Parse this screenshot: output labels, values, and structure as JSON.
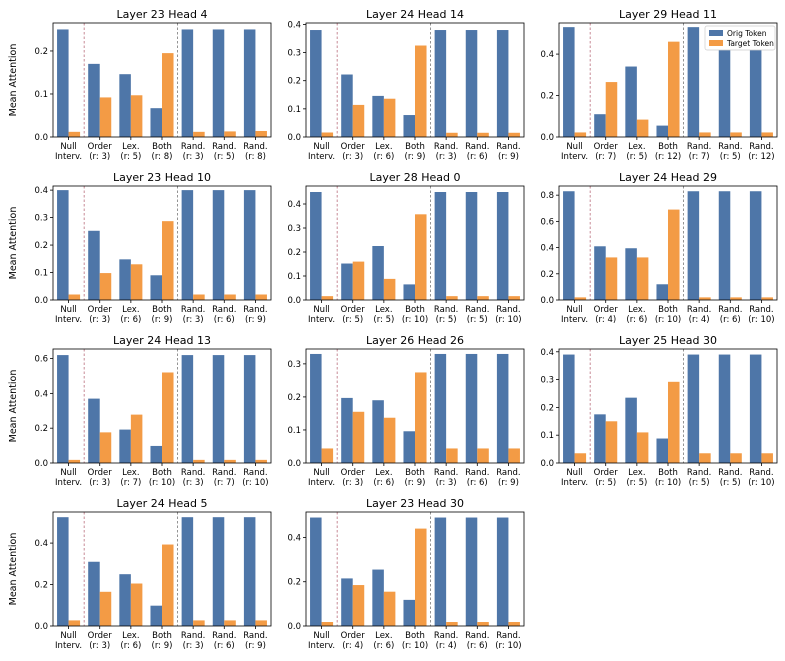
{
  "colors": {
    "orig": "#4e76a8",
    "target": "#f39b45"
  },
  "legend": {
    "orig_label": "Orig Token",
    "target_label": "Target Token"
  },
  "y_axis_label": "Mean Attention",
  "chart_data": [
    {
      "type": "bar",
      "title": "Layer 23 Head 4",
      "ylim": [
        0,
        0.265
      ],
      "yticks": [
        "0.0",
        "0.1",
        "0.2"
      ],
      "ytick_values": [
        0,
        0.1,
        0.2
      ],
      "categories": [
        [
          "Null",
          "Interv."
        ],
        [
          "Order",
          "(r: 3)"
        ],
        [
          "Lex.",
          "(r: 5)"
        ],
        [
          "Both",
          "(r: 8)"
        ],
        [
          "Rand.",
          "(r: 3)"
        ],
        [
          "Rand.",
          "(r: 5)"
        ],
        [
          "Rand.",
          "(r: 8)"
        ]
      ],
      "series": [
        {
          "name": "Orig Token",
          "values": [
            0.25,
            0.17,
            0.146,
            0.067,
            0.25,
            0.25,
            0.25
          ]
        },
        {
          "name": "Target Token",
          "values": [
            0.012,
            0.092,
            0.097,
            0.195,
            0.012,
            0.013,
            0.014
          ]
        }
      ]
    },
    {
      "type": "bar",
      "title": "Layer 24 Head 14",
      "ylim": [
        0,
        0.405
      ],
      "yticks": [
        "0.0",
        "0.1",
        "0.2",
        "0.3",
        "0.4"
      ],
      "ytick_values": [
        0,
        0.1,
        0.2,
        0.3,
        0.4
      ],
      "categories": [
        [
          "Null",
          "Interv."
        ],
        [
          "Order",
          "(r: 3)"
        ],
        [
          "Lex.",
          "(r: 6)"
        ],
        [
          "Both",
          "(r: 9)"
        ],
        [
          "Rand.",
          "(r: 3)"
        ],
        [
          "Rand.",
          "(r: 6)"
        ],
        [
          "Rand.",
          "(r: 9)"
        ]
      ],
      "series": [
        {
          "name": "Orig Token",
          "values": [
            0.38,
            0.222,
            0.146,
            0.078,
            0.38,
            0.38,
            0.38
          ]
        },
        {
          "name": "Target Token",
          "values": [
            0.016,
            0.114,
            0.136,
            0.325,
            0.015,
            0.015,
            0.015
          ]
        }
      ]
    },
    {
      "type": "bar",
      "title": "Layer 29 Head 11",
      "ylim": [
        0,
        0.55
      ],
      "yticks": [
        "0.0",
        "0.2",
        "0.4"
      ],
      "ytick_values": [
        0,
        0.2,
        0.4
      ],
      "categories": [
        [
          "Null",
          "Interv."
        ],
        [
          "Order",
          "(r: 7)"
        ],
        [
          "Lex.",
          "(r: 5)"
        ],
        [
          "Both",
          "(r: 12)"
        ],
        [
          "Rand.",
          "(r: 7)"
        ],
        [
          "Rand.",
          "(r: 5)"
        ],
        [
          "Rand.",
          "(r: 12)"
        ]
      ],
      "series": [
        {
          "name": "Orig Token",
          "values": [
            0.53,
            0.11,
            0.34,
            0.055,
            0.53,
            0.53,
            0.53
          ]
        },
        {
          "name": "Target Token",
          "values": [
            0.022,
            0.265,
            0.084,
            0.46,
            0.022,
            0.022,
            0.022
          ]
        }
      ],
      "legend": true
    },
    {
      "type": "bar",
      "title": "Layer 23 Head 10",
      "ylim": [
        0,
        0.415
      ],
      "yticks": [
        "0.0",
        "0.1",
        "0.2",
        "0.3",
        "0.4"
      ],
      "ytick_values": [
        0,
        0.1,
        0.2,
        0.3,
        0.4
      ],
      "categories": [
        [
          "Null",
          "Interv."
        ],
        [
          "Order",
          "(r: 3)"
        ],
        [
          "Lex.",
          "(r: 6)"
        ],
        [
          "Both",
          "(r: 9)"
        ],
        [
          "Rand.",
          "(r: 3)"
        ],
        [
          "Rand.",
          "(r: 6)"
        ],
        [
          "Rand.",
          "(r: 9)"
        ]
      ],
      "series": [
        {
          "name": "Orig Token",
          "values": [
            0.4,
            0.252,
            0.148,
            0.09,
            0.4,
            0.4,
            0.4
          ]
        },
        {
          "name": "Target Token",
          "values": [
            0.02,
            0.098,
            0.13,
            0.287,
            0.02,
            0.02,
            0.02
          ]
        }
      ]
    },
    {
      "type": "bar",
      "title": "Layer 28 Head 0",
      "ylim": [
        0,
        0.475
      ],
      "yticks": [
        "0.0",
        "0.1",
        "0.2",
        "0.3",
        "0.4"
      ],
      "ytick_values": [
        0,
        0.1,
        0.2,
        0.3,
        0.4
      ],
      "categories": [
        [
          "Null",
          "Interv."
        ],
        [
          "Order",
          "(r: 5)"
        ],
        [
          "Lex.",
          "(r: 5)"
        ],
        [
          "Both",
          "(r: 10)"
        ],
        [
          "Rand.",
          "(r: 5)"
        ],
        [
          "Rand.",
          "(r: 5)"
        ],
        [
          "Rand.",
          "(r: 10)"
        ]
      ],
      "series": [
        {
          "name": "Orig Token",
          "values": [
            0.45,
            0.152,
            0.225,
            0.065,
            0.45,
            0.45,
            0.45
          ]
        },
        {
          "name": "Target Token",
          "values": [
            0.016,
            0.16,
            0.088,
            0.357,
            0.016,
            0.016,
            0.016
          ]
        }
      ]
    },
    {
      "type": "bar",
      "title": "Layer 24 Head 29",
      "ylim": [
        0,
        0.87
      ],
      "yticks": [
        "0.0",
        "0.2",
        "0.4",
        "0.6",
        "0.8"
      ],
      "ytick_values": [
        0,
        0.2,
        0.4,
        0.6,
        0.8
      ],
      "categories": [
        [
          "Null",
          "Interv."
        ],
        [
          "Order",
          "(r: 4)"
        ],
        [
          "Lex.",
          "(r: 6)"
        ],
        [
          "Both",
          "(r: 10)"
        ],
        [
          "Rand.",
          "(r: 4)"
        ],
        [
          "Rand.",
          "(r: 6)"
        ],
        [
          "Rand.",
          "(r: 10)"
        ]
      ],
      "series": [
        {
          "name": "Orig Token",
          "values": [
            0.83,
            0.41,
            0.395,
            0.12,
            0.83,
            0.83,
            0.83
          ]
        },
        {
          "name": "Target Token",
          "values": [
            0.02,
            0.325,
            0.325,
            0.69,
            0.02,
            0.02,
            0.02
          ]
        }
      ]
    },
    {
      "type": "bar",
      "title": "Layer 24 Head 13",
      "ylim": [
        0,
        0.655
      ],
      "yticks": [
        "0.0",
        "0.2",
        "0.4",
        "0.6"
      ],
      "ytick_values": [
        0,
        0.2,
        0.4,
        0.6
      ],
      "categories": [
        [
          "Null",
          "Interv."
        ],
        [
          "Order",
          "(r: 3)"
        ],
        [
          "Lex.",
          "(r: 7)"
        ],
        [
          "Both",
          "(r: 10)"
        ],
        [
          "Rand.",
          "(r: 3)"
        ],
        [
          "Rand.",
          "(r: 7)"
        ],
        [
          "Rand.",
          "(r: 10)"
        ]
      ],
      "series": [
        {
          "name": "Orig Token",
          "values": [
            0.62,
            0.37,
            0.192,
            0.098,
            0.62,
            0.62,
            0.62
          ]
        },
        {
          "name": "Target Token",
          "values": [
            0.018,
            0.176,
            0.278,
            0.52,
            0.018,
            0.018,
            0.018
          ]
        }
      ]
    },
    {
      "type": "bar",
      "title": "Layer 26 Head 26",
      "ylim": [
        0,
        0.345
      ],
      "yticks": [
        "0.0",
        "0.1",
        "0.2",
        "0.3"
      ],
      "ytick_values": [
        0,
        0.1,
        0.2,
        0.3
      ],
      "categories": [
        [
          "Null",
          "Interv."
        ],
        [
          "Order",
          "(r: 3)"
        ],
        [
          "Lex.",
          "(r: 6)"
        ],
        [
          "Both",
          "(r: 9)"
        ],
        [
          "Rand.",
          "(r: 3)"
        ],
        [
          "Rand.",
          "(r: 6)"
        ],
        [
          "Rand.",
          "(r: 9)"
        ]
      ],
      "series": [
        {
          "name": "Orig Token",
          "values": [
            0.33,
            0.197,
            0.19,
            0.096,
            0.33,
            0.33,
            0.33
          ]
        },
        {
          "name": "Target Token",
          "values": [
            0.044,
            0.155,
            0.137,
            0.274,
            0.044,
            0.044,
            0.044
          ]
        }
      ]
    },
    {
      "type": "bar",
      "title": "Layer 25 Head 30",
      "ylim": [
        0,
        0.41
      ],
      "yticks": [
        "0.0",
        "0.1",
        "0.2",
        "0.3",
        "0.4"
      ],
      "ytick_values": [
        0,
        0.1,
        0.2,
        0.3,
        0.4
      ],
      "categories": [
        [
          "Null",
          "Interv."
        ],
        [
          "Order",
          "(r: 5)"
        ],
        [
          "Lex.",
          "(r: 5)"
        ],
        [
          "Both",
          "(r: 10)"
        ],
        [
          "Rand.",
          "(r: 5)"
        ],
        [
          "Rand.",
          "(r: 5)"
        ],
        [
          "Rand.",
          "(r: 10)"
        ]
      ],
      "series": [
        {
          "name": "Orig Token",
          "values": [
            0.39,
            0.175,
            0.235,
            0.088,
            0.39,
            0.39,
            0.39
          ]
        },
        {
          "name": "Target Token",
          "values": [
            0.035,
            0.15,
            0.11,
            0.292,
            0.035,
            0.035,
            0.035
          ]
        }
      ]
    },
    {
      "type": "bar",
      "title": "Layer 24 Head 5",
      "ylim": [
        0,
        0.55
      ],
      "yticks": [
        "0.0",
        "0.2",
        "0.4"
      ],
      "ytick_values": [
        0,
        0.2,
        0.4
      ],
      "categories": [
        [
          "Null",
          "Interv."
        ],
        [
          "Order",
          "(r: 3)"
        ],
        [
          "Lex.",
          "(r: 6)"
        ],
        [
          "Both",
          "(r: 9)"
        ],
        [
          "Rand.",
          "(r: 3)"
        ],
        [
          "Rand.",
          "(r: 6)"
        ],
        [
          "Rand.",
          "(r: 9)"
        ]
      ],
      "series": [
        {
          "name": "Orig Token",
          "values": [
            0.525,
            0.31,
            0.25,
            0.098,
            0.525,
            0.525,
            0.525
          ]
        },
        {
          "name": "Target Token",
          "values": [
            0.027,
            0.165,
            0.205,
            0.393,
            0.027,
            0.027,
            0.027
          ]
        }
      ]
    },
    {
      "type": "bar",
      "title": "Layer 23 Head 30",
      "ylim": [
        0,
        0.515
      ],
      "yticks": [
        "0.0",
        "0.2",
        "0.4"
      ],
      "ytick_values": [
        0,
        0.2,
        0.4
      ],
      "categories": [
        [
          "Null",
          "Interv."
        ],
        [
          "Order",
          "(r: 4)"
        ],
        [
          "Lex.",
          "(r: 6)"
        ],
        [
          "Both",
          "(r: 10)"
        ],
        [
          "Rand.",
          "(r: 4)"
        ],
        [
          "Rand.",
          "(r: 6)"
        ],
        [
          "Rand.",
          "(r: 10)"
        ]
      ],
      "series": [
        {
          "name": "Orig Token",
          "values": [
            0.49,
            0.215,
            0.255,
            0.118,
            0.49,
            0.49,
            0.49
          ]
        },
        {
          "name": "Target Token",
          "values": [
            0.018,
            0.185,
            0.155,
            0.44,
            0.018,
            0.018,
            0.018
          ]
        }
      ]
    }
  ]
}
